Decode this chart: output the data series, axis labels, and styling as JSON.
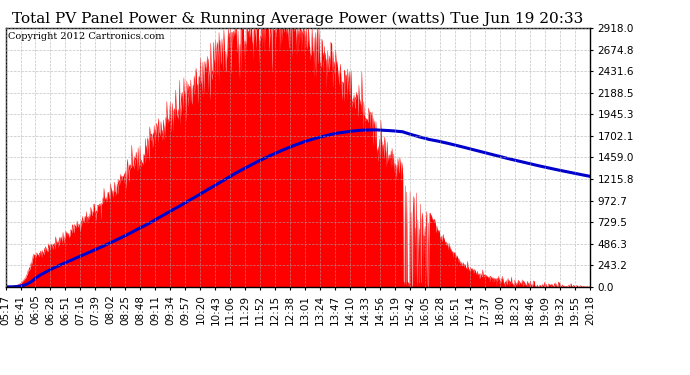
{
  "title": "Total PV Panel Power & Running Average Power (watts) Tue Jun 19 20:33",
  "copyright": "Copyright 2012 Cartronics.com",
  "yticks": [
    0.0,
    243.2,
    486.3,
    729.5,
    972.7,
    1215.8,
    1459.0,
    1702.1,
    1945.3,
    2188.5,
    2431.6,
    2674.8,
    2918.0
  ],
  "ymax": 2918.0,
  "xtick_labels": [
    "05:17",
    "05:41",
    "06:05",
    "06:28",
    "06:51",
    "07:16",
    "07:39",
    "08:02",
    "08:25",
    "08:48",
    "09:11",
    "09:34",
    "09:57",
    "10:20",
    "10:43",
    "11:06",
    "11:29",
    "11:52",
    "12:15",
    "12:38",
    "13:01",
    "13:24",
    "13:47",
    "14:10",
    "14:33",
    "14:56",
    "15:19",
    "15:42",
    "16:05",
    "16:28",
    "16:51",
    "17:14",
    "17:37",
    "18:00",
    "18:23",
    "18:46",
    "19:09",
    "19:32",
    "19:55",
    "20:18"
  ],
  "fill_color": "#ff0000",
  "line_color": "#0000cc",
  "background_color": "#ffffff",
  "grid_color": "#aaaaaa",
  "title_fontsize": 11,
  "copyright_fontsize": 7,
  "tick_fontsize": 7.5,
  "line_width": 2.2
}
